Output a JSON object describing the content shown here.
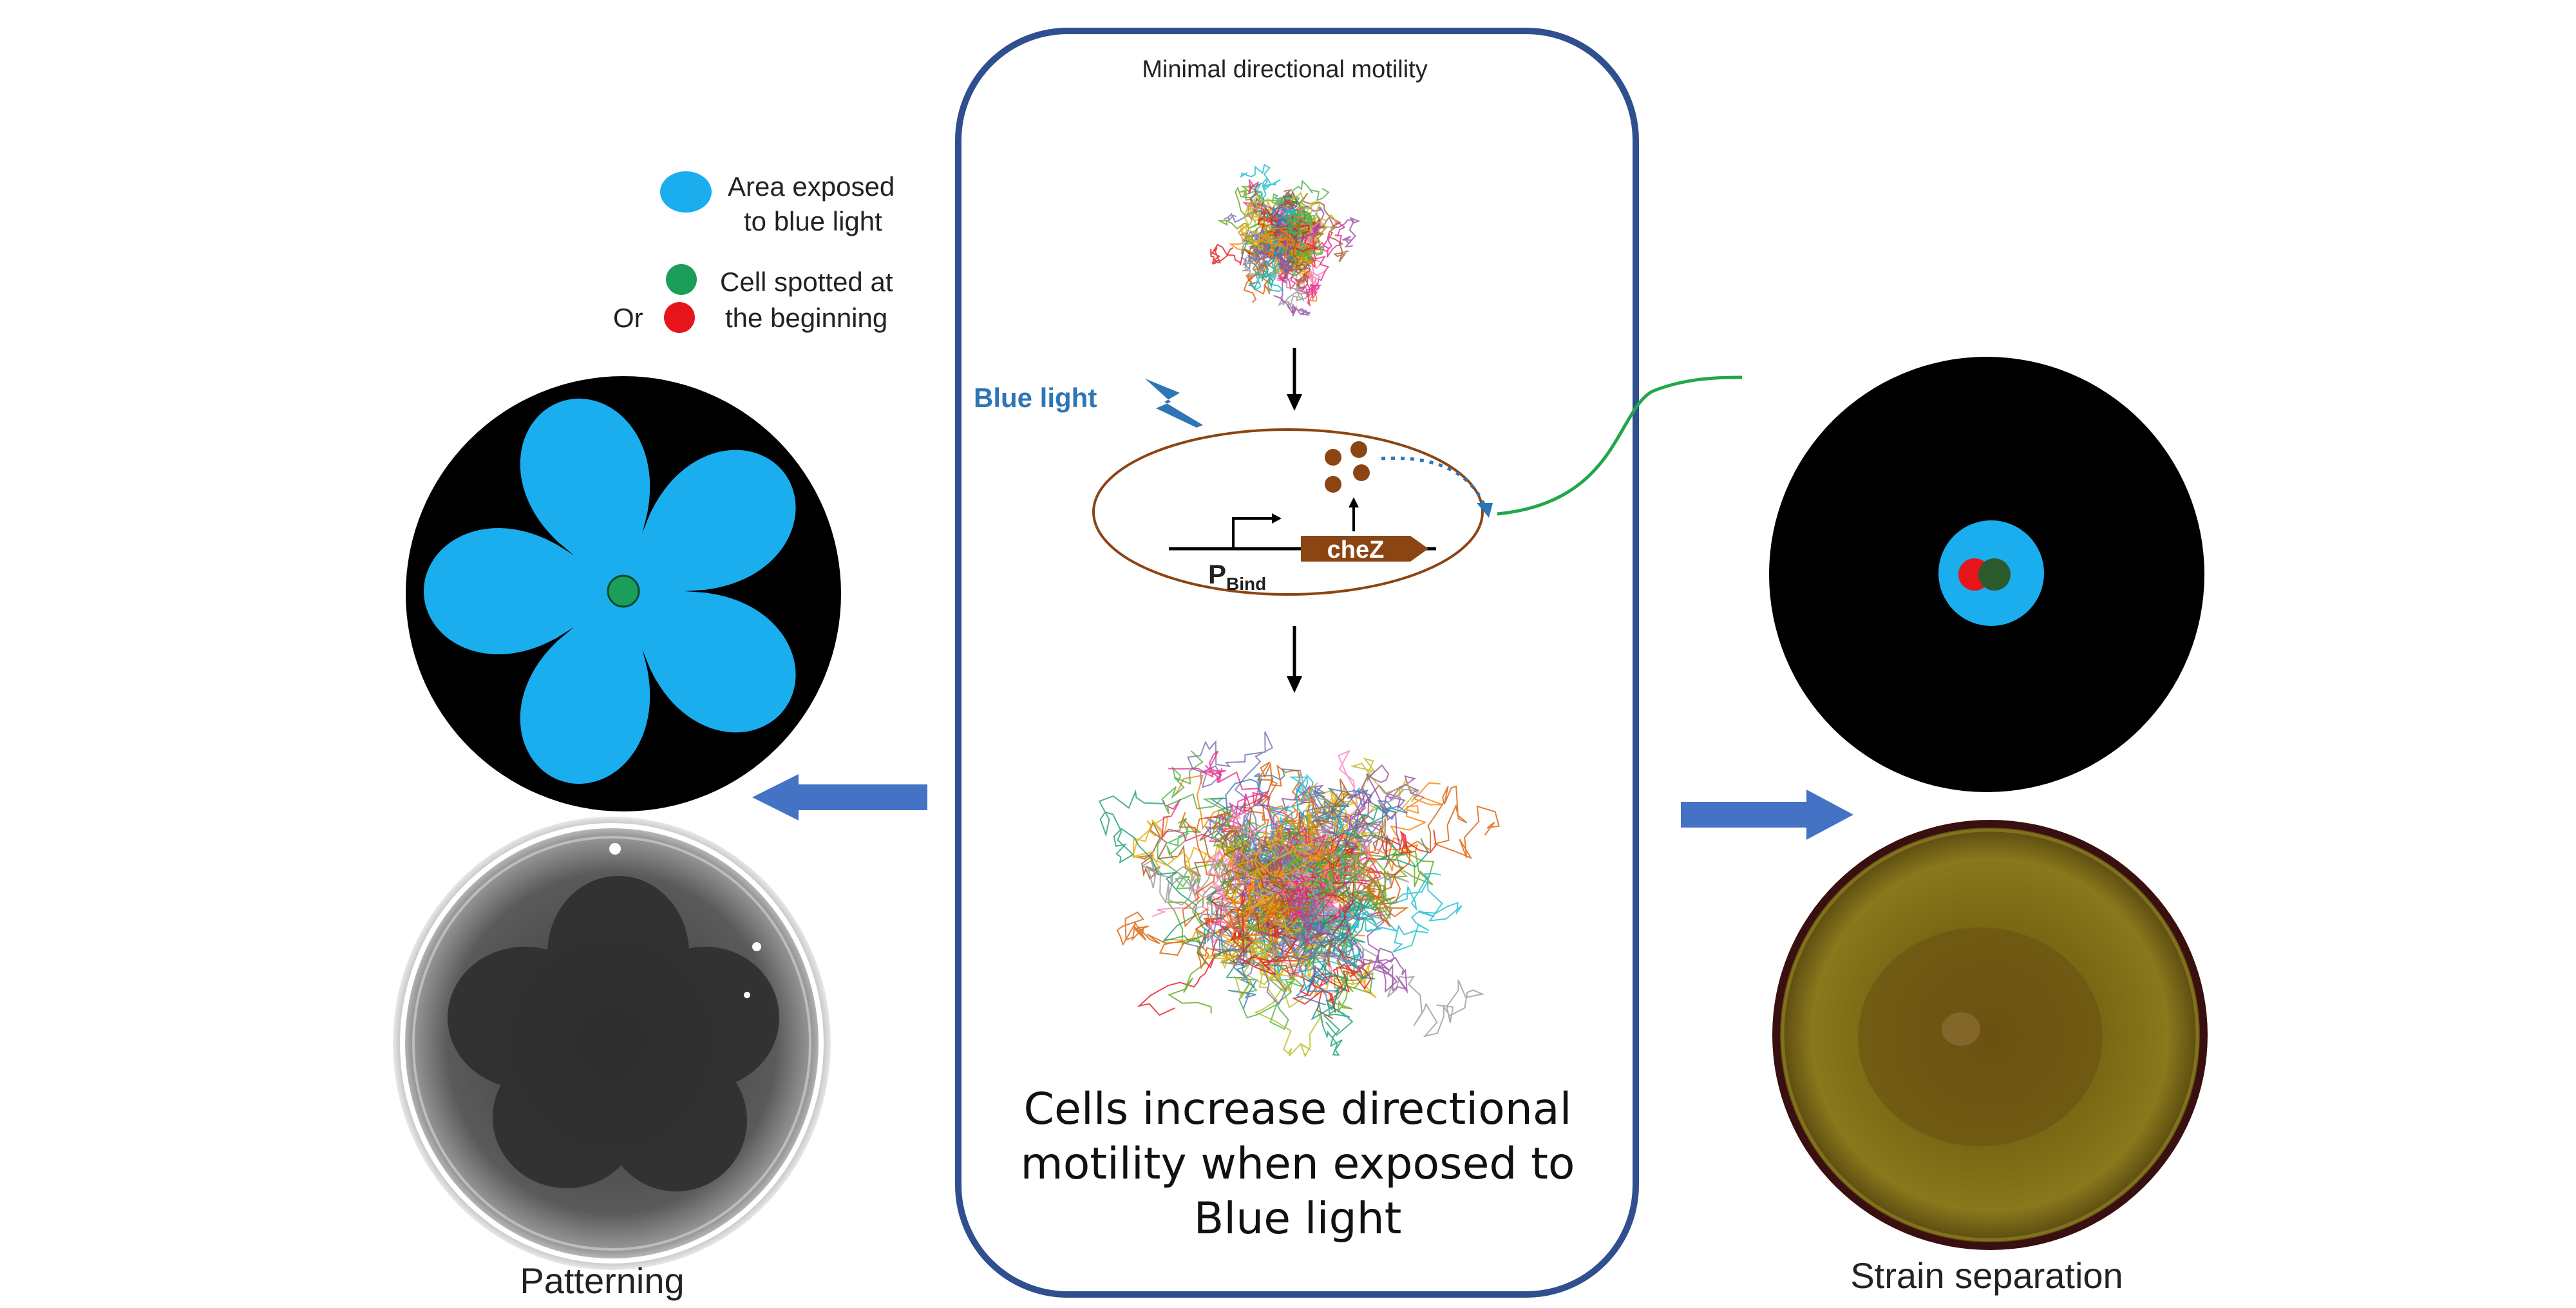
{
  "center_panel": {
    "title": "Minimal directional motility",
    "stimulus_label": "Blue light",
    "gene_label": "cheZ",
    "promoter_label_main": "P",
    "promoter_label_sub": "Bind",
    "caption_line1": "Cells increase directional",
    "caption_line2": "motility when exposed to",
    "caption_line3": "Blue light"
  },
  "legend": {
    "blue_area_line1": "Area exposed",
    "blue_area_line2": "to blue light",
    "cell_line1": "Cell spotted at",
    "cell_line2": "the beginning",
    "or_label": "Or"
  },
  "left_panel": {
    "label": "Patterning"
  },
  "right_panel": {
    "label": "Strain separation"
  },
  "colors": {
    "panel_border": "#2f4f8f",
    "arrow_blue": "#4472c4",
    "light_blue": "#1aaeef",
    "cell_green": "#1a9e5a",
    "cell_red": "#e8141c",
    "protein_brown": "#8b4513",
    "connector_green": "#1fa84a",
    "plate_black": "#000000",
    "agar_yellow": "#6b5a12"
  }
}
